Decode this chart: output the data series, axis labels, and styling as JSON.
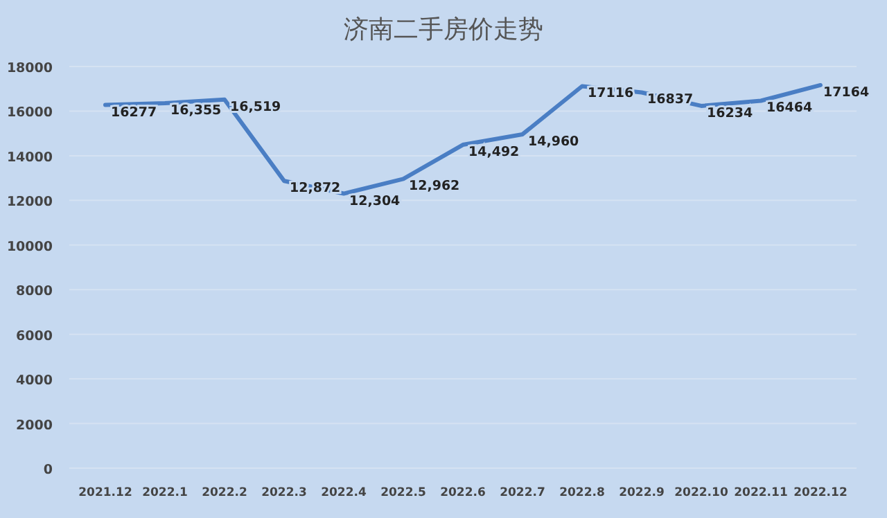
{
  "chart_data": {
    "type": "line",
    "title": "济南二手房价走势",
    "categories": [
      "2021.12",
      "2022.1",
      "2022.2",
      "2022.3",
      "2022.4",
      "2022.5",
      "2022.6",
      "2022.7",
      "2022.8",
      "2022.9",
      "2022.10",
      "2022.11",
      "2022.12"
    ],
    "series": [
      {
        "color": "#4a7ec4",
        "values": [
          16277,
          16355,
          16519,
          12872,
          12304,
          12962,
          14492,
          14960,
          17116,
          16837,
          16234,
          16464,
          17164
        ],
        "value_labels": [
          "16277",
          "16,355",
          "16,519",
          "12,872",
          "12,304",
          "12,962",
          "14,492",
          "14,960",
          "17116",
          "16837",
          "16234",
          "16464",
          "17164"
        ]
      }
    ],
    "ylim": [
      0,
      18000
    ],
    "yticks": [
      0,
      2000,
      4000,
      6000,
      8000,
      10000,
      12000,
      14000,
      16000,
      18000
    ],
    "grid": "y",
    "marker": "none",
    "line_style": "solid"
  }
}
